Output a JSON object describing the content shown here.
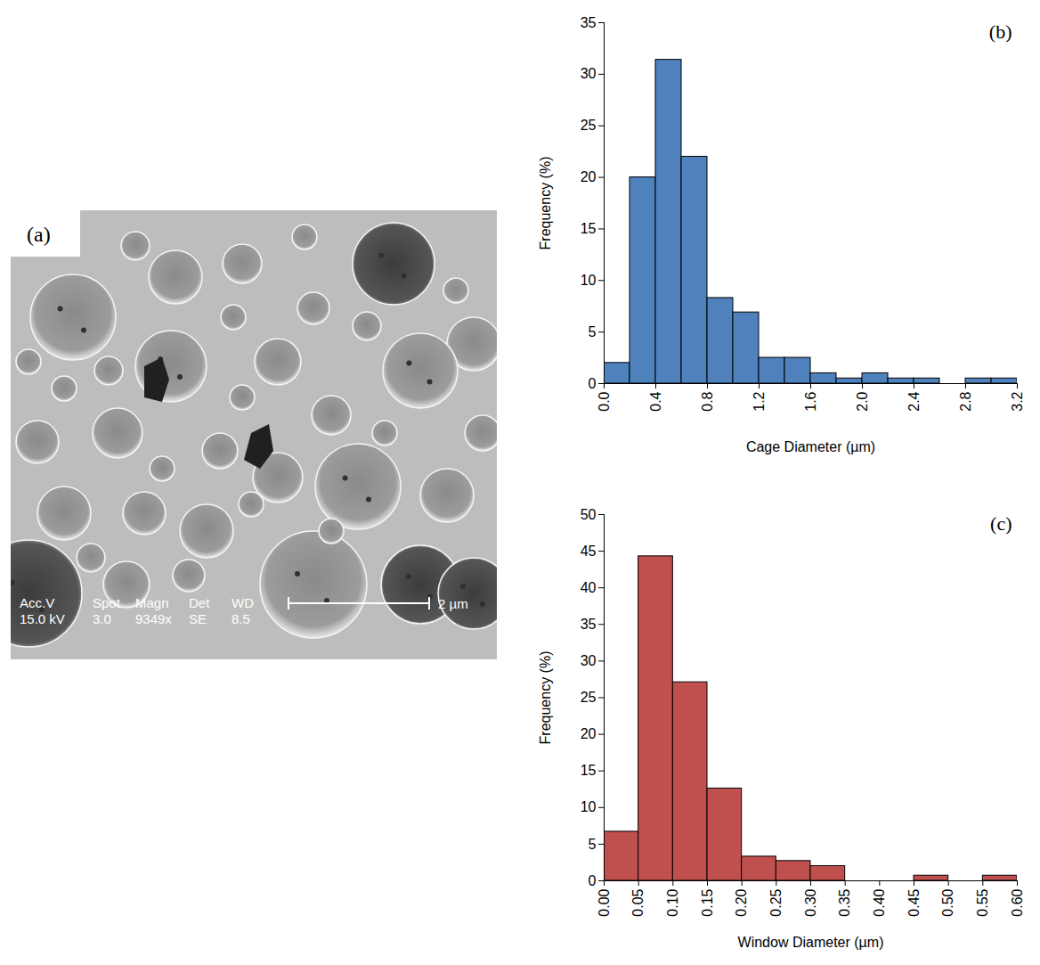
{
  "chart_data": [
    {
      "type": "image",
      "label": "(a)",
      "annotations": {
        "header": [
          "Acc.V",
          "Spot",
          "Magn",
          "Det",
          "WD"
        ],
        "values": [
          "15.0 kV",
          "3.0",
          "9349x",
          "SE",
          "8.5"
        ],
        "scale_bar": "2 µm"
      }
    },
    {
      "type": "histogram",
      "label": "(b)",
      "xlabel": "Cage Diameter (µm)",
      "ylabel": "Frequency (%)",
      "bins": [
        0,
        0.2,
        0.4,
        0.6,
        0.8,
        1.0,
        1.2,
        1.4,
        1.6,
        1.8,
        2.0,
        2.2,
        2.4,
        2.6,
        2.8,
        3.0,
        3.2
      ],
      "values": [
        2,
        20,
        31.4,
        22,
        8.3,
        6.9,
        2.5,
        2.5,
        1,
        0.5,
        1,
        0.5,
        0.5,
        0,
        0.5,
        0.5
      ],
      "color": "#4f81bd",
      "xlim": [
        0,
        3.2
      ],
      "xticks": [
        {
          "value": 0,
          "label": "0.0"
        },
        0.4,
        0.8,
        1.2,
        1.6,
        {
          "value": 2,
          "label": "2.0"
        },
        2.4,
        2.8,
        3.2
      ],
      "ylim": [
        0,
        35
      ],
      "yticks": [
        0,
        5,
        10,
        15,
        20,
        25,
        30,
        35
      ],
      "grid": false
    },
    {
      "type": "histogram",
      "label": "(c)",
      "xlabel": "Window Diameter (µm)",
      "ylabel": "Frequency (%)",
      "bins": [
        0,
        0.05,
        0.1,
        0.15,
        0.2,
        0.25,
        0.3,
        0.35,
        0.4,
        0.45,
        0.5,
        0.55,
        0.6
      ],
      "values": [
        6.7,
        44.3,
        27.1,
        12.6,
        3.3,
        2.7,
        2.0,
        0,
        0,
        0.7,
        0,
        0.7
      ],
      "color": "#c0504d",
      "xlim": [
        0,
        0.6
      ],
      "xticks": [
        {
          "value": 0,
          "label": "0.00"
        },
        0.05,
        {
          "value": 0.1,
          "label": "0.10"
        },
        0.15,
        {
          "value": 0.2,
          "label": "0.20"
        },
        0.25,
        {
          "value": 0.3,
          "label": "0.30"
        },
        0.35,
        {
          "value": 0.4,
          "label": "0.40"
        },
        0.45,
        {
          "value": 0.5,
          "label": "0.50"
        },
        0.55,
        {
          "value": 0.6,
          "label": "0.60"
        }
      ],
      "ylim": [
        0,
        50
      ],
      "yticks": [
        0,
        5,
        10,
        15,
        20,
        25,
        30,
        35,
        40,
        45,
        50
      ],
      "grid": false
    }
  ]
}
